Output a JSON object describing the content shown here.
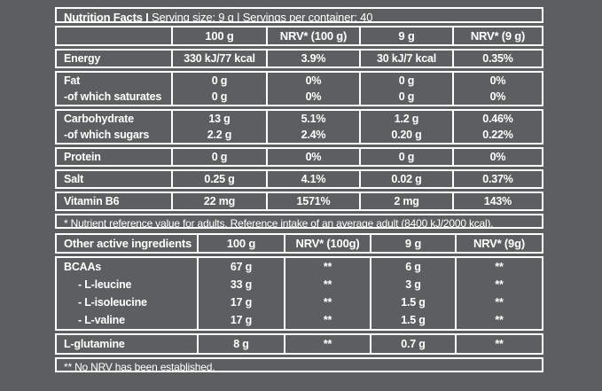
{
  "colors": {
    "background": "#5b5f60",
    "border": "#ffffff",
    "text": "#ffffff"
  },
  "nutrition_table": {
    "title_bold": "Nutrition Facts I",
    "title_rest": "Serving size: 9 g | Servings per container: 40",
    "columns": [
      "",
      "100 g",
      "NRV* (100 g)",
      "9 g",
      "NRV* (9 g)"
    ],
    "groups": [
      {
        "rows": [
          {
            "label": "Energy",
            "values": [
              "330 kJ/77 kcal",
              "3.9%",
              "30 kJ/7 kcal",
              "0.35%"
            ]
          }
        ]
      },
      {
        "rows": [
          {
            "label": "Fat",
            "values": [
              "0 g",
              "0%",
              "0 g",
              "0%"
            ]
          },
          {
            "label": "-of which saturates",
            "values": [
              "0 g",
              "0%",
              "0 g",
              "0%"
            ]
          }
        ]
      },
      {
        "rows": [
          {
            "label": "Carbohydrate",
            "values": [
              "13 g",
              "5.1%",
              "1.2 g",
              "0.46%"
            ]
          },
          {
            "label": "-of which sugars",
            "values": [
              "2.2 g",
              "2.4%",
              "0.20 g",
              "0.22%"
            ]
          }
        ]
      },
      {
        "rows": [
          {
            "label": "Protein",
            "values": [
              "0 g",
              "0%",
              "0 g",
              "0%"
            ]
          }
        ]
      },
      {
        "rows": [
          {
            "label": "Salt",
            "values": [
              "0.25 g",
              "4.1%",
              "0.02 g",
              "0.37%"
            ]
          }
        ]
      },
      {
        "rows": [
          {
            "label": "Vitamin B6",
            "values": [
              "22 mg",
              "1571%",
              "2 mg",
              "143%"
            ]
          }
        ]
      }
    ],
    "footnote": "* Nutrient reference value for adults. Reference intake of an average adult (8400 kJ/2000 kcal)."
  },
  "ingredients_table": {
    "columns": [
      "Other active ingredients",
      "100 g",
      "NRV* (100g)",
      "9 g",
      "NRV* (9g)"
    ],
    "groups": [
      {
        "rows": [
          {
            "label": "BCAAs",
            "values": [
              "67 g",
              "**",
              "6 g",
              "**"
            ]
          },
          {
            "label": "- L-leucine",
            "values": [
              "33 g",
              "**",
              "3 g",
              "**"
            ]
          },
          {
            "label": "- L-isoleucine",
            "values": [
              "17 g",
              "**",
              "1.5 g",
              "**"
            ]
          },
          {
            "label": "- L-valine",
            "values": [
              "17 g",
              "**",
              "1.5 g",
              "**"
            ]
          }
        ]
      },
      {
        "rows": [
          {
            "label": "L-glutamine",
            "values": [
              "8 g",
              "**",
              "0.7 g",
              "**"
            ]
          }
        ]
      }
    ],
    "footnote": "** No NRV has been established."
  }
}
